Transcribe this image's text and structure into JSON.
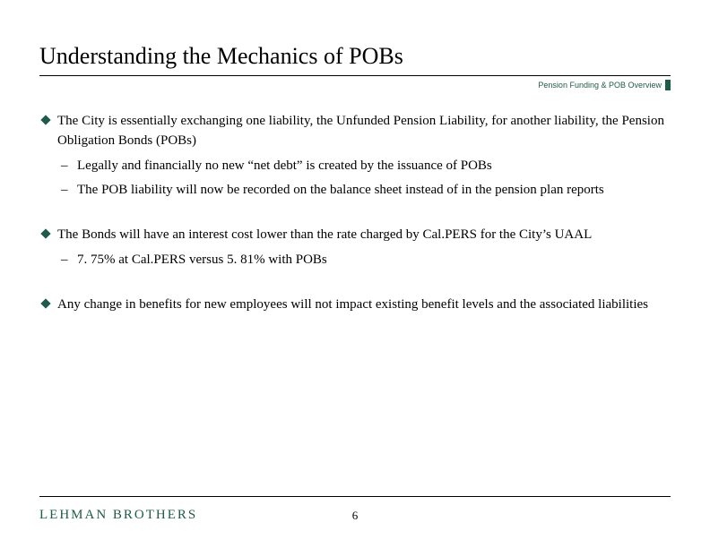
{
  "colors": {
    "accent": "#1f5b4a",
    "text": "#000000",
    "background": "#ffffff",
    "rule": "#000000"
  },
  "typography": {
    "title_fontsize": 26,
    "body_fontsize": 15,
    "breadcrumb_fontsize": 9,
    "logo_fontsize": 15,
    "page_number_fontsize": 13,
    "body_font": "Times New Roman",
    "breadcrumb_font": "Arial"
  },
  "title": "Understanding the Mechanics of POBs",
  "breadcrumb": "Pension Funding & POB Overview",
  "bullets": [
    {
      "text": "The City is essentially exchanging one liability, the Unfunded Pension Liability, for another liability, the Pension Obligation Bonds (POBs)",
      "sub": [
        "Legally and financially no new “net debt” is created by the issuance of POBs",
        "The POB liability will now be recorded on the balance sheet instead of in the pension plan reports"
      ]
    },
    {
      "text": "The Bonds will have an interest cost lower than the rate charged by Cal.PERS for the City’s UAAL",
      "sub": [
        "7. 75% at Cal.PERS versus 5. 81% with POBs"
      ]
    },
    {
      "text": "Any change in benefits for new employees will not impact existing benefit levels and the associated liabilities",
      "sub": []
    }
  ],
  "footer": {
    "logo": "LEHMAN BROTHERS",
    "page_number": "6"
  },
  "layout": {
    "slide_width": 792,
    "slide_height": 612,
    "content_padding_x": 44,
    "content_padding_top": 48
  }
}
